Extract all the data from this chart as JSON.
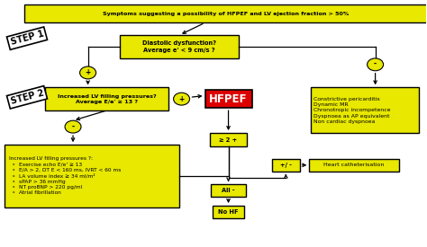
{
  "bg_color": "#ffffff",
  "yellow": "#e8e800",
  "red": "#dd0000",
  "black": "#000000",
  "white": "#ffffff",
  "step1_label": "STEP 1",
  "step2_label": "STEP 2",
  "box_top": "Symptoms suggesting a possibility of HFPEF and LV ejection fraction > 50%",
  "box_dd": "Diastolic dysfunction?\nAverage e' < 9 cm/s ?",
  "box_lvfp": "Increased LV filling pressures?\nAverage E/e' ≥ 13 ?",
  "box_hfpef": "HFPEF",
  "box_right": "Constrictive pericarditis\nDynamic MR\nChronotropic incompetence\nDyspnoea as AP equivalent\nNon cardiac dyspnoea",
  "box_criteria": "Increased LV filling pressures ?:\n  ‣  Exercise echo E/e' ≥ 13\n  ‣  E/A > 2, DT E < 160 ms, IVRT < 60 ms\n  ‣  LA volume index ≥ 34 ml/m²\n  ‣  sPAP > 36 mmHg\n  ‣  NT proBNP > 220 pg/ml\n  ‣  Atrial fibrillation",
  "box_ge2": "≥ 2 +",
  "box_all_minus": "All -",
  "box_no_hf": "No HF",
  "box_pm": "+/ -",
  "box_heart_cath": "Heart catheterisation",
  "plus_label": "+",
  "minus_label": "-"
}
